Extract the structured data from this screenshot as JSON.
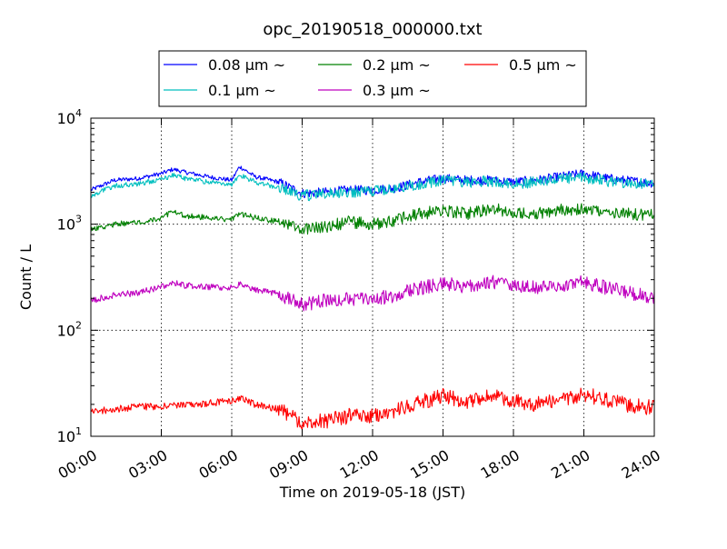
{
  "chart_data": {
    "type": "line",
    "title": "opc_20190518_000000.txt",
    "xlabel": "Time on 2019-05-18 (JST)",
    "ylabel": "Count / L",
    "y_scale": "log",
    "ylim": [
      10,
      10000
    ],
    "xlim": [
      "00:00",
      "24:00"
    ],
    "x_ticks": [
      "00:00",
      "03:00",
      "06:00",
      "09:00",
      "12:00",
      "15:00",
      "18:00",
      "21:00",
      "24:00"
    ],
    "y_ticks": [
      {
        "base": "10",
        "exp": "1"
      },
      {
        "base": "10",
        "exp": "2"
      },
      {
        "base": "10",
        "exp": "3"
      },
      {
        "base": "10",
        "exp": "4"
      }
    ],
    "grid": true,
    "legend_position": "top-center (above plot)",
    "x": [
      "00:00",
      "01:00",
      "02:00",
      "03:00",
      "03:30",
      "04:00",
      "05:00",
      "06:00",
      "06:20",
      "07:00",
      "08:00",
      "09:00",
      "10:00",
      "11:00",
      "12:00",
      "13:00",
      "14:00",
      "15:00",
      "16:00",
      "17:00",
      "18:00",
      "19:00",
      "20:00",
      "21:00",
      "22:00",
      "23:00",
      "24:00"
    ],
    "series": [
      {
        "name": "0.08 μm ~",
        "color": "#0000ff",
        "values": [
          2100,
          2600,
          2700,
          3000,
          3300,
          3100,
          2800,
          2600,
          3500,
          2800,
          2500,
          1950,
          2000,
          2100,
          2100,
          2200,
          2500,
          2700,
          2600,
          2600,
          2500,
          2600,
          2800,
          3000,
          2700,
          2550,
          2450
        ]
      },
      {
        "name": "0.1 μm ~",
        "color": "#00bfbf",
        "values": [
          1850,
          2300,
          2400,
          2650,
          2900,
          2700,
          2500,
          2400,
          2900,
          2500,
          2200,
          1850,
          1950,
          2000,
          2050,
          2150,
          2400,
          2600,
          2500,
          2550,
          2400,
          2500,
          2650,
          2750,
          2550,
          2450,
          2380
        ]
      },
      {
        "name": "0.2 μm ~",
        "color": "#008000",
        "values": [
          880,
          1000,
          1050,
          1150,
          1300,
          1200,
          1150,
          1100,
          1250,
          1150,
          1050,
          900,
          950,
          1050,
          1000,
          1100,
          1250,
          1350,
          1250,
          1400,
          1300,
          1250,
          1350,
          1400,
          1250,
          1250,
          1200
        ]
      },
      {
        "name": "0.3 μm ~",
        "color": "#bf00bf",
        "values": [
          190,
          215,
          225,
          255,
          280,
          265,
          255,
          250,
          270,
          240,
          220,
          175,
          190,
          200,
          195,
          215,
          250,
          275,
          260,
          285,
          265,
          250,
          265,
          285,
          250,
          225,
          205
        ]
      },
      {
        "name": "0.5 μm ~",
        "color": "#ff0000",
        "values": [
          17,
          18,
          19,
          19,
          20,
          19.5,
          20.5,
          21.5,
          23,
          20,
          18,
          13.5,
          14,
          15.5,
          15.5,
          17.5,
          21,
          24,
          21,
          24,
          21.5,
          20,
          22,
          25,
          22,
          19.5,
          18.5
        ]
      }
    ]
  }
}
